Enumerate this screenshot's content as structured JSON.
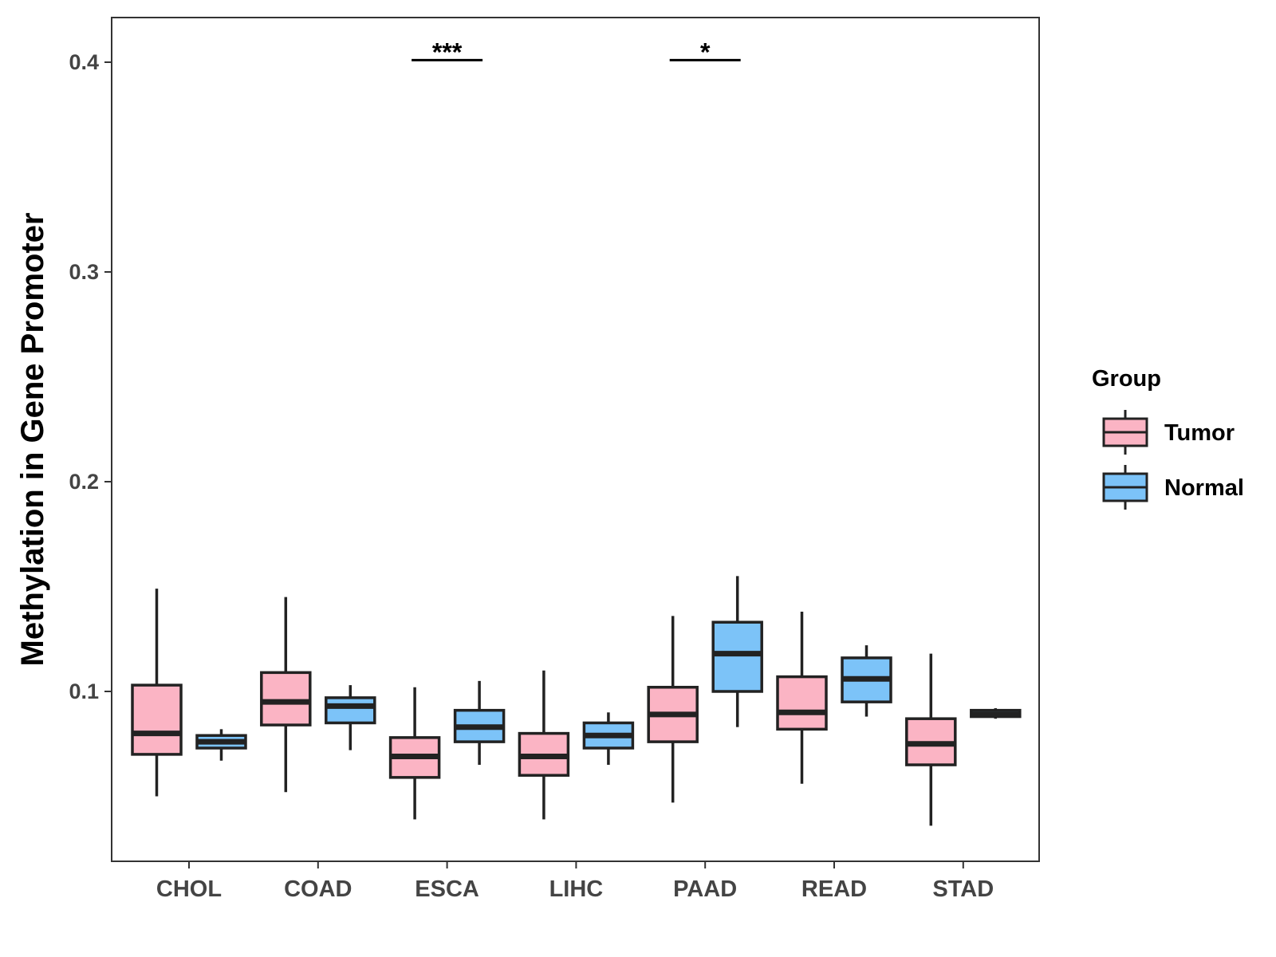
{
  "chart_data": {
    "type": "boxplot",
    "title": "",
    "xlabel": "",
    "ylabel": "Methylation in Gene Promoter",
    "ylim": [
      0.02,
      0.42
    ],
    "yticks": [
      "0.1",
      "0.2",
      "0.3",
      "0.4"
    ],
    "categories": [
      "CHOL",
      "COAD",
      "ESCA",
      "LIHC",
      "PAAD",
      "READ",
      "STAD"
    ],
    "legend": {
      "title": "Group",
      "position": "right",
      "entries": [
        {
          "name": "Tumor",
          "color": "#FBB4C4"
        },
        {
          "name": "Normal",
          "color": "#7CC3F8"
        }
      ]
    },
    "series": [
      {
        "name": "Tumor",
        "color": "#FBB4C4",
        "boxes": [
          {
            "min": 0.05,
            "q1": 0.07,
            "median": 0.08,
            "q3": 0.103,
            "max": 0.149
          },
          {
            "min": 0.052,
            "q1": 0.084,
            "median": 0.095,
            "q3": 0.109,
            "max": 0.145
          },
          {
            "min": 0.039,
            "q1": 0.059,
            "median": 0.069,
            "q3": 0.078,
            "max": 0.102
          },
          {
            "min": 0.039,
            "q1": 0.06,
            "median": 0.069,
            "q3": 0.08,
            "max": 0.11
          },
          {
            "min": 0.047,
            "q1": 0.076,
            "median": 0.089,
            "q3": 0.102,
            "max": 0.136
          },
          {
            "min": 0.056,
            "q1": 0.082,
            "median": 0.09,
            "q3": 0.107,
            "max": 0.138
          },
          {
            "min": 0.036,
            "q1": 0.065,
            "median": 0.075,
            "q3": 0.087,
            "max": 0.118
          }
        ]
      },
      {
        "name": "Normal",
        "color": "#7CC3F8",
        "boxes": [
          {
            "min": 0.067,
            "q1": 0.073,
            "median": 0.076,
            "q3": 0.079,
            "max": 0.082
          },
          {
            "min": 0.072,
            "q1": 0.085,
            "median": 0.093,
            "q3": 0.097,
            "max": 0.103
          },
          {
            "min": 0.065,
            "q1": 0.076,
            "median": 0.083,
            "q3": 0.091,
            "max": 0.105
          },
          {
            "min": 0.065,
            "q1": 0.073,
            "median": 0.079,
            "q3": 0.085,
            "max": 0.09
          },
          {
            "min": 0.083,
            "q1": 0.1,
            "median": 0.118,
            "q3": 0.133,
            "max": 0.155
          },
          {
            "min": 0.088,
            "q1": 0.095,
            "median": 0.106,
            "q3": 0.116,
            "max": 0.122
          },
          {
            "min": 0.087,
            "q1": 0.088,
            "median": 0.089,
            "q3": 0.091,
            "max": 0.092
          }
        ]
      }
    ],
    "annotations": [
      {
        "category": "ESCA",
        "label": "***",
        "y": 0.401
      },
      {
        "category": "PAAD",
        "label": "*",
        "y": 0.401
      }
    ]
  }
}
